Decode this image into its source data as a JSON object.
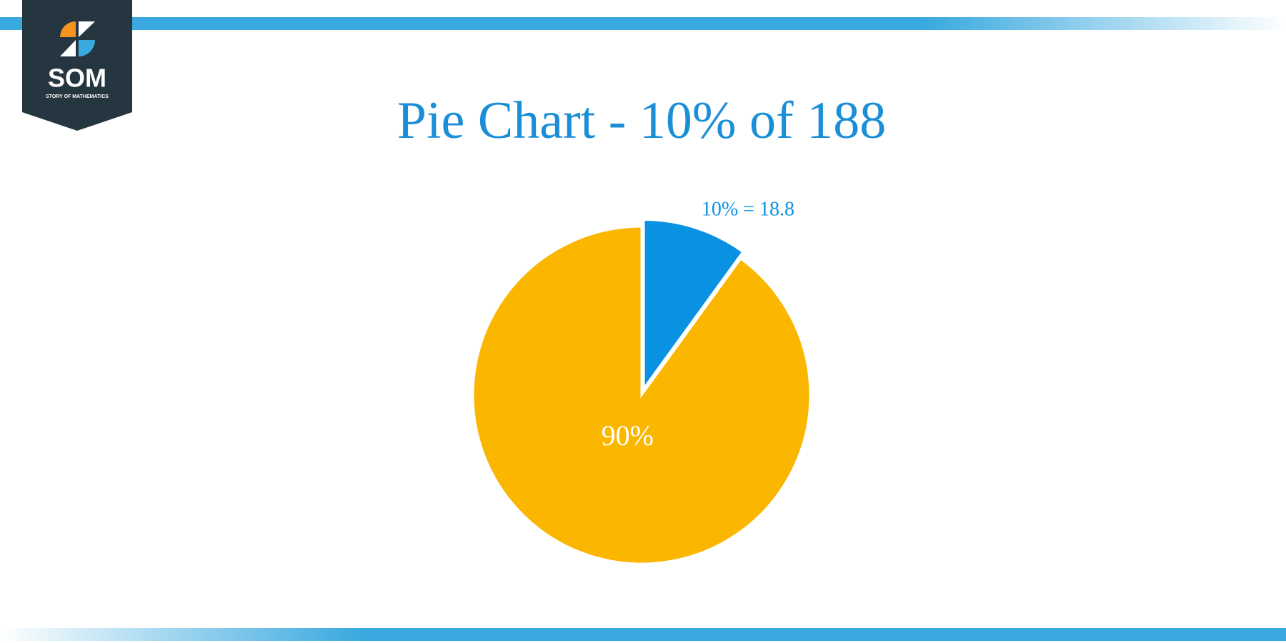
{
  "logo": {
    "text": "SOM",
    "tagline": "STORY OF MATHEMATICS"
  },
  "chart_data": {
    "type": "pie",
    "title": "Pie Chart - 10% of 188",
    "values": [
      10,
      90
    ],
    "value_labels": [
      "10% = 18.8",
      "90%"
    ],
    "colors": [
      "#0a92e2",
      "#fbb600"
    ],
    "label_colors": [
      "#0a92e2",
      "#ffffff"
    ]
  }
}
